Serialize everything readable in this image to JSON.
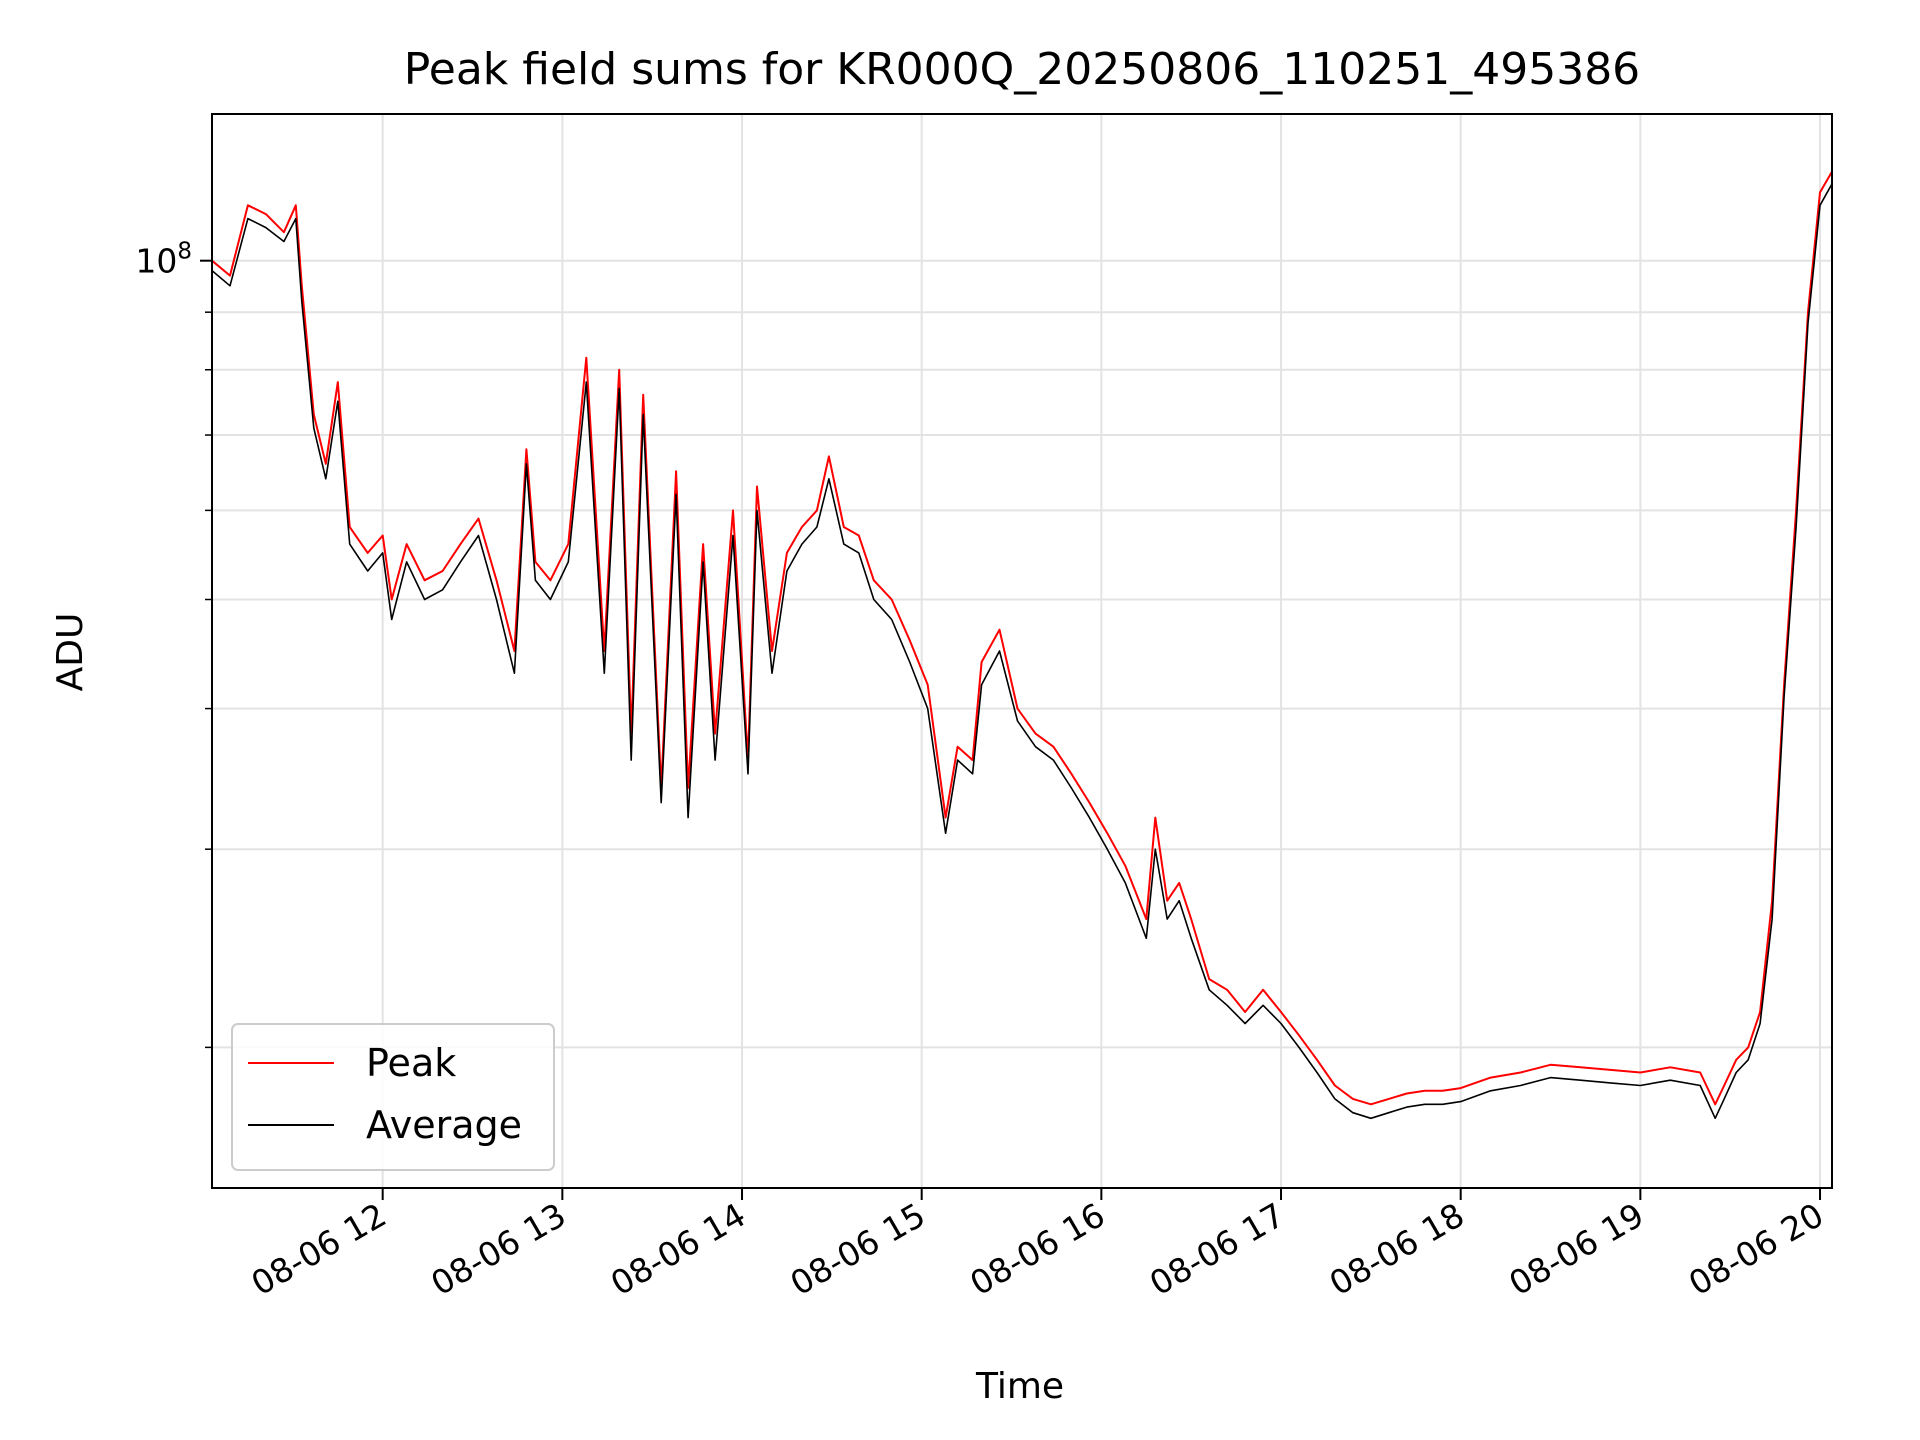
{
  "chart_data": {
    "type": "line",
    "title": "Peak field sums for KR000Q_20250806_110251_495386",
    "xlabel": "Time",
    "ylabel": "ADU",
    "x_scale": "time",
    "y_scale": "log",
    "xlim": [
      "08-06 11:03",
      "08-06 20:04"
    ],
    "ylim": [
      15000000,
      135000000
    ],
    "grid": true,
    "legend_position": "lower-left",
    "x_ticks": [
      "08-06 12",
      "08-06 13",
      "08-06 14",
      "08-06 15",
      "08-06 16",
      "08-06 17",
      "08-06 18",
      "08-06 19",
      "08-06 20"
    ],
    "y_ticks": [
      {
        "value": 100000000,
        "label": "10^8"
      },
      {
        "value": 90000000,
        "label": ""
      },
      {
        "value": 80000000,
        "label": ""
      },
      {
        "value": 70000000,
        "label": ""
      },
      {
        "value": 60000000,
        "label": ""
      },
      {
        "value": 50000000,
        "label": ""
      },
      {
        "value": 40000000,
        "label": ""
      },
      {
        "value": 30000000,
        "label": ""
      },
      {
        "value": 20000000,
        "label": ""
      }
    ],
    "series": [
      {
        "name": "Peak",
        "color": "#ff0000",
        "x": [
          "08-06 11:03",
          "08-06 11:09",
          "08-06 11:15",
          "08-06 11:21",
          "08-06 11:27",
          "08-06 11:31",
          "08-06 11:33",
          "08-06 11:37",
          "08-06 11:41",
          "08-06 11:45",
          "08-06 11:49",
          "08-06 11:55",
          "08-06 12:00",
          "08-06 12:03",
          "08-06 12:08",
          "08-06 12:14",
          "08-06 12:20",
          "08-06 12:26",
          "08-06 12:32",
          "08-06 12:38",
          "08-06 12:44",
          "08-06 12:48",
          "08-06 12:51",
          "08-06 12:56",
          "08-06 13:02",
          "08-06 13:08",
          "08-06 13:14",
          "08-06 13:19",
          "08-06 13:23",
          "08-06 13:27",
          "08-06 13:33",
          "08-06 13:38",
          "08-06 13:42",
          "08-06 13:47",
          "08-06 13:51",
          "08-06 13:57",
          "08-06 14:02",
          "08-06 14:05",
          "08-06 14:10",
          "08-06 14:15",
          "08-06 14:20",
          "08-06 14:25",
          "08-06 14:29",
          "08-06 14:34",
          "08-06 14:39",
          "08-06 14:44",
          "08-06 14:50",
          "08-06 14:56",
          "08-06 15:02",
          "08-06 15:08",
          "08-06 15:12",
          "08-06 15:17",
          "08-06 15:20",
          "08-06 15:26",
          "08-06 15:32",
          "08-06 15:38",
          "08-06 15:44",
          "08-06 15:50",
          "08-06 15:56",
          "08-06 16:02",
          "08-06 16:08",
          "08-06 16:15",
          "08-06 16:18",
          "08-06 16:22",
          "08-06 16:26",
          "08-06 16:30",
          "08-06 16:36",
          "08-06 16:42",
          "08-06 16:48",
          "08-06 16:54",
          "08-06 17:00",
          "08-06 17:06",
          "08-06 17:12",
          "08-06 17:18",
          "08-06 17:24",
          "08-06 17:30",
          "08-06 17:36",
          "08-06 17:42",
          "08-06 17:48",
          "08-06 17:54",
          "08-06 18:00",
          "08-06 18:10",
          "08-06 18:20",
          "08-06 18:30",
          "08-06 18:40",
          "08-06 18:50",
          "08-06 19:00",
          "08-06 19:10",
          "08-06 19:20",
          "08-06 19:25",
          "08-06 19:28",
          "08-06 19:32",
          "08-06 19:36",
          "08-06 19:40",
          "08-06 19:44",
          "08-06 19:48",
          "08-06 19:52",
          "08-06 19:56",
          "08-06 20:00",
          "08-06 20:04"
        ],
        "values": [
          100000000,
          97000000,
          112000000,
          110000000,
          106000000,
          112000000,
          95000000,
          73000000,
          66000000,
          78000000,
          58000000,
          55000000,
          57000000,
          50000000,
          56000000,
          52000000,
          53000000,
          56000000,
          59000000,
          52000000,
          45000000,
          68000000,
          54000000,
          52000000,
          56000000,
          82000000,
          45000000,
          80000000,
          38000000,
          76000000,
          34000000,
          65000000,
          34000000,
          56000000,
          38000000,
          60000000,
          36000000,
          63000000,
          45000000,
          55000000,
          58000000,
          60000000,
          67000000,
          58000000,
          57000000,
          52000000,
          50000000,
          46000000,
          42000000,
          32000000,
          37000000,
          36000000,
          44000000,
          47000000,
          40000000,
          38000000,
          37000000,
          35000000,
          33000000,
          31000000,
          29000000,
          26000000,
          32000000,
          27000000,
          28000000,
          26000000,
          23000000,
          22500000,
          21500000,
          22500000,
          21500000,
          20500000,
          19500000,
          18500000,
          18000000,
          17800000,
          18000000,
          18200000,
          18300000,
          18300000,
          18400000,
          18800000,
          19000000,
          19300000,
          19200000,
          19100000,
          19000000,
          19200000,
          19000000,
          17800000,
          18500000,
          19500000,
          20000000,
          21500000,
          27000000,
          42000000,
          60000000,
          90000000,
          115000000,
          120000000
        ]
      },
      {
        "name": "Average",
        "color": "#000000",
        "x": [
          "08-06 11:03",
          "08-06 11:09",
          "08-06 11:15",
          "08-06 11:21",
          "08-06 11:27",
          "08-06 11:31",
          "08-06 11:33",
          "08-06 11:37",
          "08-06 11:41",
          "08-06 11:45",
          "08-06 11:49",
          "08-06 11:55",
          "08-06 12:00",
          "08-06 12:03",
          "08-06 12:08",
          "08-06 12:14",
          "08-06 12:20",
          "08-06 12:26",
          "08-06 12:32",
          "08-06 12:38",
          "08-06 12:44",
          "08-06 12:48",
          "08-06 12:51",
          "08-06 12:56",
          "08-06 13:02",
          "08-06 13:08",
          "08-06 13:14",
          "08-06 13:19",
          "08-06 13:23",
          "08-06 13:27",
          "08-06 13:33",
          "08-06 13:38",
          "08-06 13:42",
          "08-06 13:47",
          "08-06 13:51",
          "08-06 13:57",
          "08-06 14:02",
          "08-06 14:05",
          "08-06 14:10",
          "08-06 14:15",
          "08-06 14:20",
          "08-06 14:25",
          "08-06 14:29",
          "08-06 14:34",
          "08-06 14:39",
          "08-06 14:44",
          "08-06 14:50",
          "08-06 14:56",
          "08-06 15:02",
          "08-06 15:08",
          "08-06 15:12",
          "08-06 15:17",
          "08-06 15:20",
          "08-06 15:26",
          "08-06 15:32",
          "08-06 15:38",
          "08-06 15:44",
          "08-06 15:50",
          "08-06 15:56",
          "08-06 16:02",
          "08-06 16:08",
          "08-06 16:15",
          "08-06 16:18",
          "08-06 16:22",
          "08-06 16:26",
          "08-06 16:30",
          "08-06 16:36",
          "08-06 16:42",
          "08-06 16:48",
          "08-06 16:54",
          "08-06 17:00",
          "08-06 17:06",
          "08-06 17:12",
          "08-06 17:18",
          "08-06 17:24",
          "08-06 17:30",
          "08-06 17:36",
          "08-06 17:42",
          "08-06 17:48",
          "08-06 17:54",
          "08-06 18:00",
          "08-06 18:10",
          "08-06 18:20",
          "08-06 18:30",
          "08-06 18:40",
          "08-06 18:50",
          "08-06 19:00",
          "08-06 19:10",
          "08-06 19:20",
          "08-06 19:25",
          "08-06 19:28",
          "08-06 19:32",
          "08-06 19:36",
          "08-06 19:40",
          "08-06 19:44",
          "08-06 19:48",
          "08-06 19:52",
          "08-06 19:56",
          "08-06 20:00",
          "08-06 20:04"
        ],
        "values": [
          98000000,
          95000000,
          109000000,
          107000000,
          104000000,
          109000000,
          92000000,
          71000000,
          64000000,
          75000000,
          56000000,
          53000000,
          55000000,
          48000000,
          54000000,
          50000000,
          51000000,
          54000000,
          57000000,
          50000000,
          43000000,
          66000000,
          52000000,
          50000000,
          54000000,
          78000000,
          43000000,
          77000000,
          36000000,
          73000000,
          33000000,
          62000000,
          32000000,
          54000000,
          36000000,
          57000000,
          35000000,
          60000000,
          43000000,
          53000000,
          56000000,
          58000000,
          64000000,
          56000000,
          55000000,
          50000000,
          48000000,
          44000000,
          40000000,
          31000000,
          36000000,
          35000000,
          42000000,
          45000000,
          39000000,
          37000000,
          36000000,
          34000000,
          32000000,
          30000000,
          28000000,
          25000000,
          30000000,
          26000000,
          27000000,
          25000000,
          22500000,
          21800000,
          21000000,
          21800000,
          21000000,
          20000000,
          19000000,
          18000000,
          17500000,
          17300000,
          17500000,
          17700000,
          17800000,
          17800000,
          17900000,
          18300000,
          18500000,
          18800000,
          18700000,
          18600000,
          18500000,
          18700000,
          18500000,
          17300000,
          18000000,
          19000000,
          19500000,
          21000000,
          26000000,
          41000000,
          58000000,
          88000000,
          112000000,
          117000000
        ]
      }
    ]
  }
}
